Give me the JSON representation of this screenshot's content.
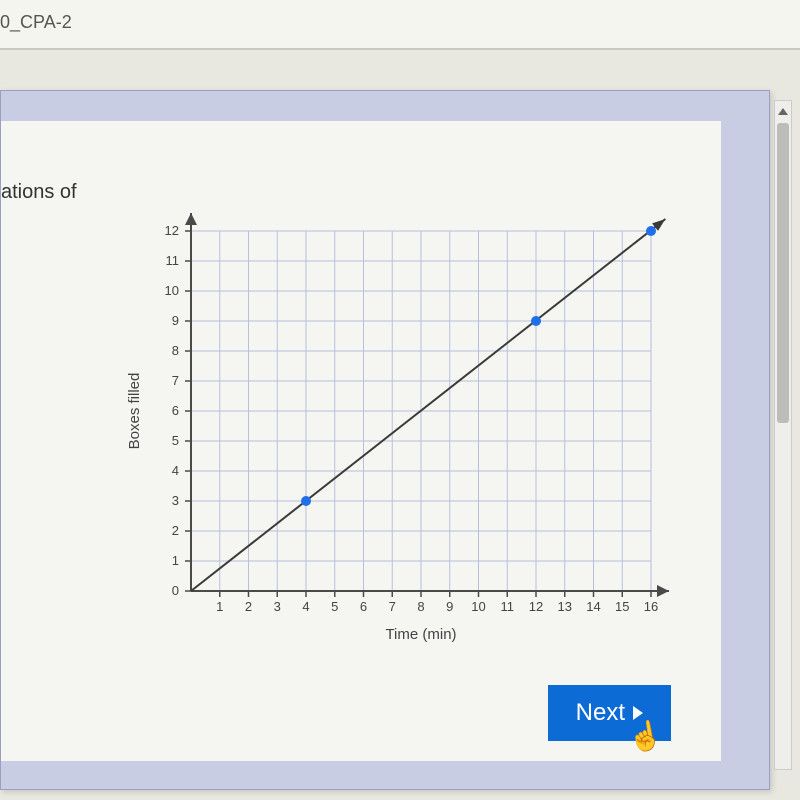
{
  "tab": {
    "title": "0_CPA-2"
  },
  "question": {
    "fragment": "ations of"
  },
  "chart": {
    "type": "line",
    "x_label": "Time (min)",
    "y_label": "Boxes filled",
    "xlim": [
      0,
      16
    ],
    "ylim": [
      0,
      12
    ],
    "x_ticks": [
      1,
      2,
      3,
      4,
      5,
      6,
      7,
      8,
      9,
      10,
      11,
      12,
      13,
      14,
      15,
      16
    ],
    "y_ticks": [
      0,
      1,
      2,
      3,
      4,
      5,
      6,
      7,
      8,
      9,
      10,
      11,
      12
    ],
    "points": [
      {
        "x": 4,
        "y": 3
      },
      {
        "x": 12,
        "y": 9
      },
      {
        "x": 16,
        "y": 12
      }
    ],
    "line_start": {
      "x": 0,
      "y": 0
    },
    "line_end": {
      "x": 16.5,
      "y": 12.4
    },
    "grid_color": "#b8c0dc",
    "axis_color": "#4a4a4a",
    "line_color": "#3a3a3a",
    "point_color": "#1e6fe8",
    "point_radius": 5,
    "background": "#f5f5f2",
    "tick_font_size": 13,
    "label_font_size": 15
  },
  "buttons": {
    "next": "Next"
  }
}
